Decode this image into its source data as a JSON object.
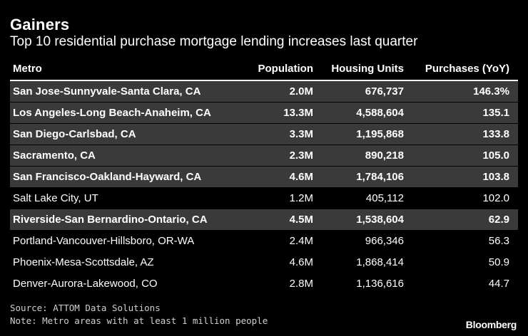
{
  "title": "Gainers",
  "subtitle": "Top 10 residential purchase mortgage lending increases last quarter",
  "chart_data": {
    "type": "table",
    "columns": [
      "Metro",
      "Population",
      "Housing Units",
      "Purchases (YoY)"
    ],
    "rows": [
      {
        "metro": "San Jose-Sunnyvale-Santa Clara, CA",
        "population": "2.0M",
        "housing": "676,737",
        "purchases": "146.3%",
        "highlight": true
      },
      {
        "metro": "Los Angeles-Long Beach-Anaheim, CA",
        "population": "13.3M",
        "housing": "4,588,604",
        "purchases": "135.1",
        "highlight": true
      },
      {
        "metro": "San Diego-Carlsbad, CA",
        "population": "3.3M",
        "housing": "1,195,868",
        "purchases": "133.8",
        "highlight": true
      },
      {
        "metro": "Sacramento, CA",
        "population": "2.3M",
        "housing": "890,218",
        "purchases": "105.0",
        "highlight": true
      },
      {
        "metro": "San Francisco-Oakland-Hayward, CA",
        "population": "4.6M",
        "housing": "1,784,106",
        "purchases": "103.8",
        "highlight": true
      },
      {
        "metro": "Salt Lake City, UT",
        "population": "1.2M",
        "housing": "405,112",
        "purchases": "102.0",
        "highlight": false
      },
      {
        "metro": "Riverside-San Bernardino-Ontario, CA",
        "population": "4.5M",
        "housing": "1,538,604",
        "purchases": "62.9",
        "highlight": true
      },
      {
        "metro": "Portland-Vancouver-Hillsboro, OR-WA",
        "population": "2.4M",
        "housing": "966,346",
        "purchases": "56.3",
        "highlight": false
      },
      {
        "metro": "Phoenix-Mesa-Scottsdale, AZ",
        "population": "4.6M",
        "housing": "1,868,414",
        "purchases": "50.9",
        "highlight": false
      },
      {
        "metro": "Denver-Aurora-Lakewood, CO",
        "population": "2.8M",
        "housing": "1,136,616",
        "purchases": "44.7",
        "highlight": false
      }
    ]
  },
  "source": "Source: ATTOM Data Solutions",
  "note": "Note: Metro areas with at least 1 million people",
  "brand": "Bloomberg",
  "colors": {
    "background": "#000000",
    "highlight_row": "#3a3a3a",
    "text": "#ffffff"
  }
}
